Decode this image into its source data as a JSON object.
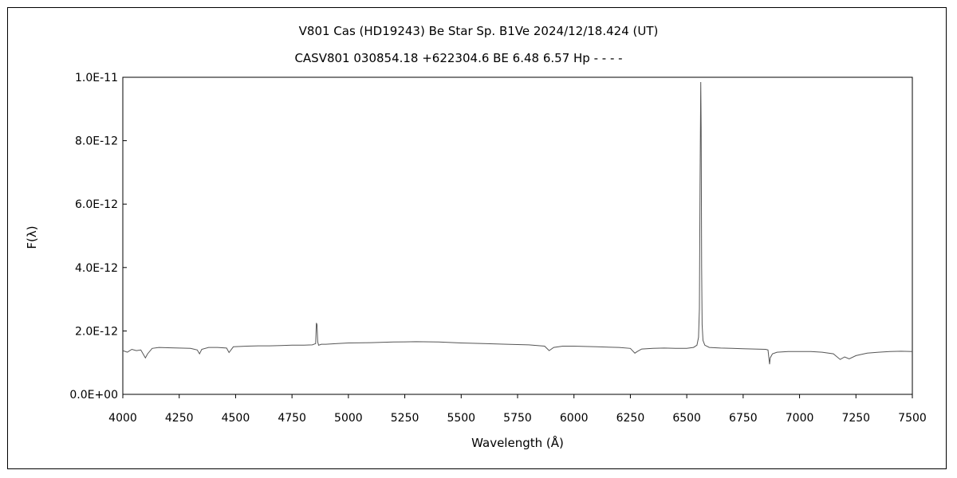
{
  "chart_data": {
    "type": "line",
    "title": "V801 Cas (HD19243)    Be Star    Sp. B1Ve    2024/12/18.424 (UT)",
    "subtitle": "CASV801 030854.18 +622304.6 BE 6.48 6.57 Hp - - - -",
    "xlabel": "Wavelength (Å)",
    "ylabel": "F(λ)",
    "xlim": [
      4000,
      7500
    ],
    "ylim": [
      0,
      1e-11
    ],
    "x_ticks": [
      4000,
      4250,
      4500,
      4750,
      5000,
      5250,
      5500,
      5750,
      6000,
      6250,
      6500,
      6750,
      7000,
      7250,
      7500
    ],
    "x_tick_labels": [
      "4000",
      "4250",
      "4500",
      "4750",
      "5000",
      "5250",
      "5500",
      "5750",
      "6000",
      "6250",
      "6500",
      "6750",
      "7000",
      "7250",
      "7500"
    ],
    "y_ticks": [
      0,
      2e-12,
      4e-12,
      6e-12,
      8e-12,
      1e-11
    ],
    "y_tick_labels": [
      "0.0E+00",
      "2.0E-12",
      "4.0E-12",
      "6.0E-12",
      "8.0E-12",
      "1.0E-11"
    ],
    "grid": false,
    "series": [
      {
        "x": [
          4000,
          4020,
          4040,
          4060,
          4080,
          4100,
          4110,
          4130,
          4160,
          4200,
          4250,
          4300,
          4330,
          4340,
          4350,
          4380,
          4420,
          4460,
          4471,
          4490,
          4550,
          4600,
          4650,
          4700,
          4750,
          4800,
          4840,
          4855,
          4858,
          4861,
          4864,
          4868,
          4880,
          4900,
          4950,
          5000,
          5100,
          5200,
          5300,
          5400,
          5500,
          5600,
          5700,
          5800,
          5870,
          5890,
          5910,
          5950,
          6000,
          6100,
          6200,
          6250,
          6270,
          6280,
          6300,
          6350,
          6400,
          6450,
          6500,
          6530,
          6545,
          6552,
          6556,
          6559,
          6562,
          6564,
          6566,
          6568,
          6572,
          6580,
          6600,
          6650,
          6700,
          6750,
          6800,
          6850,
          6860,
          6867,
          6870,
          6880,
          6900,
          6950,
          7000,
          7050,
          7100,
          7150,
          7180,
          7200,
          7220,
          7250,
          7300,
          7350,
          7400,
          7450,
          7500
        ],
        "y": [
          1.38e-12,
          1.33e-12,
          1.42e-12,
          1.38e-12,
          1.4e-12,
          1.15e-12,
          1.28e-12,
          1.45e-12,
          1.48e-12,
          1.47e-12,
          1.46e-12,
          1.45e-12,
          1.4e-12,
          1.28e-12,
          1.42e-12,
          1.48e-12,
          1.48e-12,
          1.46e-12,
          1.32e-12,
          1.5e-12,
          1.52e-12,
          1.53e-12,
          1.53e-12,
          1.54e-12,
          1.55e-12,
          1.55e-12,
          1.56e-12,
          1.6e-12,
          2.25e-12,
          2.2e-12,
          1.65e-12,
          1.55e-12,
          1.58e-12,
          1.58e-12,
          1.6e-12,
          1.62e-12,
          1.63e-12,
          1.65e-12,
          1.66e-12,
          1.65e-12,
          1.62e-12,
          1.6e-12,
          1.58e-12,
          1.56e-12,
          1.52e-12,
          1.38e-12,
          1.48e-12,
          1.52e-12,
          1.52e-12,
          1.5e-12,
          1.48e-12,
          1.45e-12,
          1.3e-12,
          1.35e-12,
          1.43e-12,
          1.45e-12,
          1.46e-12,
          1.45e-12,
          1.45e-12,
          1.48e-12,
          1.55e-12,
          1.8e-12,
          2.7e-12,
          6.6e-12,
          9.85e-12,
          8.4e-12,
          4e-12,
          2.2e-12,
          1.7e-12,
          1.55e-12,
          1.48e-12,
          1.46e-12,
          1.45e-12,
          1.44e-12,
          1.43e-12,
          1.42e-12,
          1.4e-12,
          9.5e-13,
          1.15e-12,
          1.28e-12,
          1.33e-12,
          1.35e-12,
          1.35e-12,
          1.35e-12,
          1.33e-12,
          1.28e-12,
          1.1e-12,
          1.18e-12,
          1.12e-12,
          1.22e-12,
          1.3e-12,
          1.33e-12,
          1.35e-12,
          1.36e-12,
          1.35e-12
        ]
      }
    ]
  }
}
